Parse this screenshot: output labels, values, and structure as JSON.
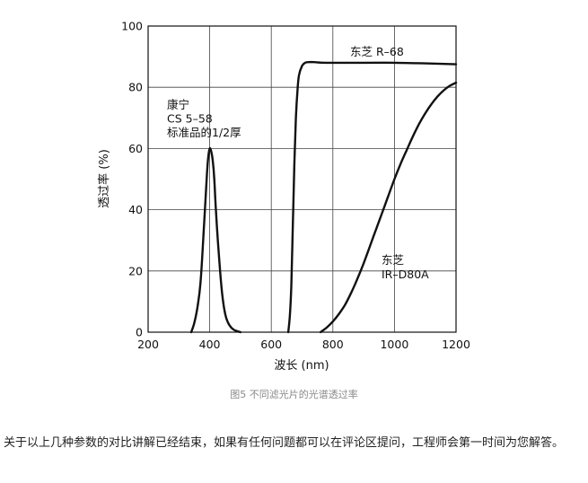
{
  "chart_data": {
    "type": "line",
    "xlabel": "波长 (nm)",
    "ylabel": "透过率 (%)",
    "xlim": [
      200,
      1200
    ],
    "ylim": [
      0,
      100
    ],
    "xticks": [
      200,
      400,
      600,
      800,
      1000,
      1200
    ],
    "yticks": [
      0,
      20,
      40,
      60,
      80,
      100
    ],
    "grid": true,
    "series": [
      {
        "name": "康宁 CS 5-58 标准品的1/2厚",
        "label_lines": [
          "康宁",
          "CS 5–58",
          "标准品的1/2厚"
        ],
        "x": [
          340,
          350,
          360,
          370,
          380,
          390,
          395,
          400,
          405,
          410,
          415,
          420,
          430,
          440,
          450,
          460,
          470,
          480,
          490,
          500
        ],
        "y": [
          0,
          3,
          8,
          16,
          32,
          50,
          57,
          60,
          59,
          56,
          50,
          40,
          25,
          13,
          6,
          3,
          1.5,
          0.7,
          0.3,
          0
        ]
      },
      {
        "name": "东芝 R-68",
        "label_lines": [
          "东芝 R–68"
        ],
        "x": [
          655,
          660,
          665,
          670,
          675,
          680,
          685,
          690,
          700,
          710,
          720,
          740,
          780,
          900,
          1000,
          1100,
          1200
        ],
        "y": [
          0,
          5,
          15,
          35,
          55,
          70,
          79,
          84,
          87,
          88,
          88.2,
          88.2,
          88,
          88,
          88,
          87.8,
          87.5
        ]
      },
      {
        "name": "东芝 IR-D80A",
        "label_lines": [
          "东芝",
          "IR–D80A"
        ],
        "x": [
          760,
          780,
          800,
          820,
          840,
          860,
          880,
          900,
          920,
          940,
          960,
          980,
          1000,
          1020,
          1040,
          1060,
          1080,
          1100,
          1120,
          1140,
          1160,
          1180,
          1200
        ],
        "y": [
          0,
          1.5,
          3.5,
          6,
          9,
          13,
          17.5,
          22.5,
          28,
          33.5,
          39,
          44.5,
          50,
          55,
          59.5,
          64,
          68,
          71.5,
          74.5,
          77,
          79,
          80.5,
          81.5
        ]
      }
    ]
  },
  "caption": "图5 不同滤光片的光谱透过率",
  "paragraph": "关于以上几种参数的对比讲解已经结束，如果有任何问题都可以在评论区提问，工程师会第一时间为您解答。"
}
